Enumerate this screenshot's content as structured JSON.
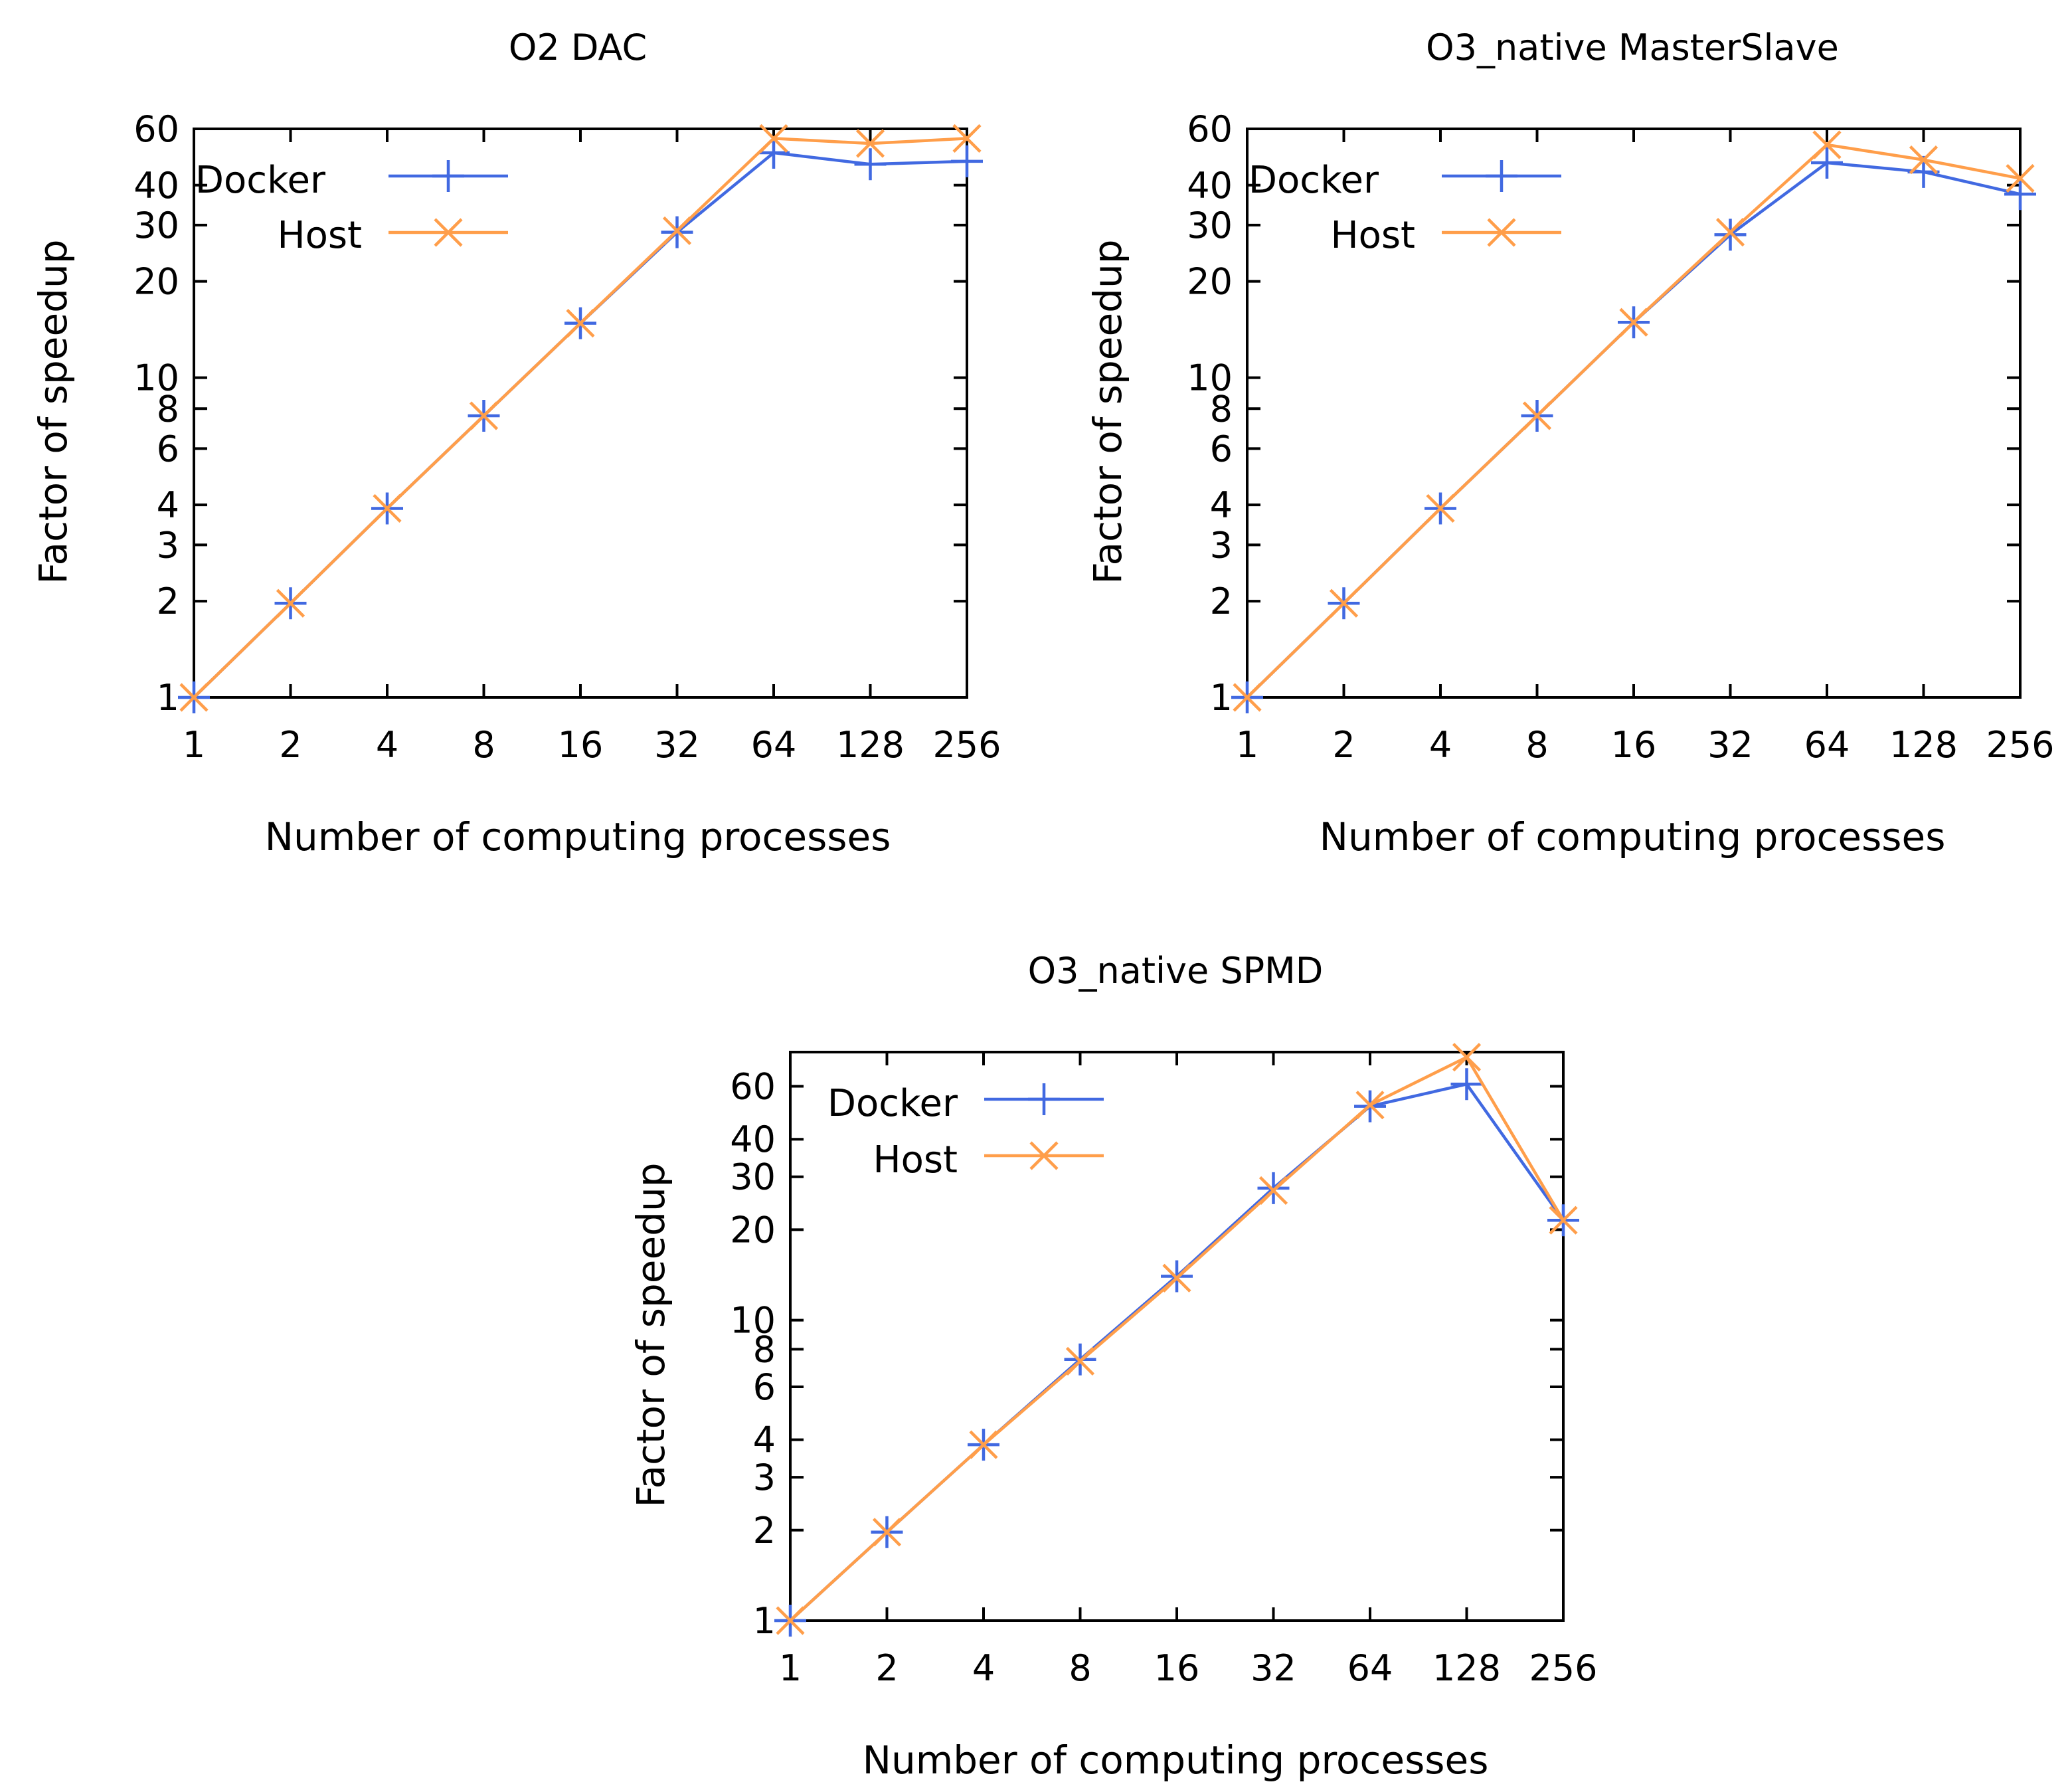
{
  "figure": {
    "background": "#ffffff"
  },
  "colors": {
    "docker": "#4169e1",
    "host": "#ff9e4a"
  },
  "chart_data": [
    {
      "type": "line",
      "title": "O2 DAC",
      "xlabel": "Number of computing processes",
      "ylabel": "Factor of speedup",
      "xscale": "log2",
      "yscale": "log",
      "x": [
        1,
        2,
        4,
        8,
        16,
        32,
        64,
        128,
        256
      ],
      "x_tick_labels": [
        "1",
        "2",
        "4",
        "8",
        "16",
        "32",
        "64",
        "128",
        "256"
      ],
      "y_ticks": [
        1,
        2,
        3,
        4,
        6,
        8,
        10,
        20,
        30,
        40,
        60
      ],
      "y_tick_labels": [
        "1",
        "2",
        "3",
        "4",
        "6",
        "8",
        "10",
        "20",
        "30",
        "40",
        "60"
      ],
      "ylim": [
        1,
        60
      ],
      "legend_position": "top-left",
      "series": [
        {
          "name": "Docker",
          "marker": "plus",
          "color_key": "docker",
          "values": [
            1,
            1.97,
            3.9,
            7.6,
            14.8,
            28.5,
            50.5,
            46.5,
            47.5
          ]
        },
        {
          "name": "Host",
          "marker": "x",
          "color_key": "host",
          "values": [
            1,
            1.97,
            3.9,
            7.6,
            14.8,
            28.8,
            56.0,
            54.0,
            56.0
          ]
        }
      ]
    },
    {
      "type": "line",
      "title": "O3_native MasterSlave",
      "xlabel": "Number of computing processes",
      "ylabel": "Factor of speedup",
      "xscale": "log2",
      "yscale": "log",
      "x": [
        1,
        2,
        4,
        8,
        16,
        32,
        64,
        128,
        256
      ],
      "x_tick_labels": [
        "1",
        "2",
        "4",
        "8",
        "16",
        "32",
        "64",
        "128",
        "256"
      ],
      "y_ticks": [
        1,
        2,
        3,
        4,
        6,
        8,
        10,
        20,
        30,
        40,
        60
      ],
      "y_tick_labels": [
        "1",
        "2",
        "3",
        "4",
        "6",
        "8",
        "10",
        "20",
        "30",
        "40",
        "60"
      ],
      "ylim": [
        1,
        60
      ],
      "legend_position": "top-left",
      "series": [
        {
          "name": "Docker",
          "marker": "plus",
          "color_key": "docker",
          "values": [
            1,
            1.97,
            3.9,
            7.6,
            14.9,
            28.0,
            47.0,
            44.0,
            37.5
          ]
        },
        {
          "name": "Host",
          "marker": "x",
          "color_key": "host",
          "values": [
            1,
            1.97,
            3.9,
            7.6,
            14.9,
            28.5,
            53.5,
            48.0,
            42.0
          ]
        }
      ]
    },
    {
      "type": "line",
      "title": "O3_native SPMD",
      "xlabel": "Number of computing processes",
      "ylabel": "Factor of speedup",
      "xscale": "log2",
      "yscale": "log",
      "x": [
        1,
        2,
        4,
        8,
        16,
        32,
        64,
        128,
        256
      ],
      "x_tick_labels": [
        "1",
        "2",
        "4",
        "8",
        "16",
        "32",
        "64",
        "128",
        "256"
      ],
      "y_ticks": [
        1,
        2,
        3,
        4,
        6,
        8,
        10,
        20,
        30,
        40,
        60
      ],
      "y_tick_labels": [
        "1",
        "2",
        "3",
        "4",
        "6",
        "8",
        "10",
        "20",
        "30",
        "40",
        "60"
      ],
      "ylim": [
        1,
        78
      ],
      "legend_position": "top-left",
      "series": [
        {
          "name": "Docker",
          "marker": "plus",
          "color_key": "docker",
          "values": [
            1,
            1.97,
            3.85,
            7.4,
            14.0,
            27.5,
            51.5,
            61.0,
            21.5
          ]
        },
        {
          "name": "Host",
          "marker": "x",
          "color_key": "host",
          "values": [
            1,
            1.97,
            3.85,
            7.3,
            13.8,
            27.0,
            52.0,
            75.0,
            21.5
          ]
        }
      ]
    }
  ]
}
